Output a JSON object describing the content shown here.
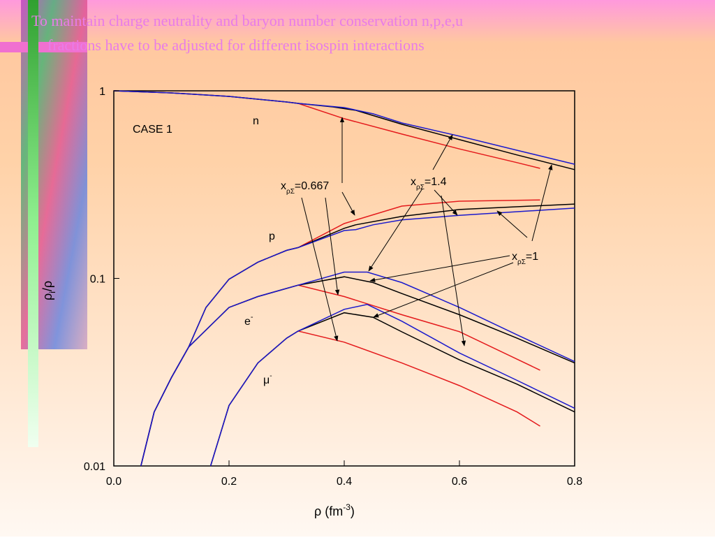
{
  "slide": {
    "title_lines": [
      "To maintain charge neutrality and baryon number conservation n,p,e,u",
      "fractions have to be adjusted  for different isospin interactions"
    ]
  },
  "chart_data": {
    "type": "line",
    "log_y": true,
    "x_label": {
      "text": "ρ (fm",
      "sup": "-3",
      "tail": ")"
    },
    "y_label": {
      "text": "ρ",
      "sub": "i",
      "tail": "/ρ"
    },
    "xlim": [
      0,
      0.8
    ],
    "ylim": [
      0.01,
      1
    ],
    "xticks": [
      {
        "value": 0,
        "label": "0.0"
      },
      {
        "value": 0.2,
        "label": "0.2"
      },
      {
        "value": 0.4,
        "label": "0.4"
      },
      {
        "value": 0.6,
        "label": "0.6"
      },
      {
        "value": 0.8,
        "label": "0.8"
      }
    ],
    "yticks": [
      0.01,
      0.1,
      1
    ],
    "case_label": "CASE 1",
    "curve_labels": {
      "n": "n",
      "p": "p",
      "e": "e",
      "e_sup": "-",
      "mu": "μ",
      "mu_sup": "-"
    },
    "x_annotations": [
      {
        "x": "x",
        "sub": "ρΣ",
        "eq": "=0.667"
      },
      {
        "x": "x",
        "sub": "ρΣ",
        "eq": "=1.4"
      },
      {
        "x": "x",
        "sub": "ρΣ",
        "eq": "=1"
      }
    ],
    "series": [
      {
        "color": "#e41a1c",
        "x": [
          0,
          0.1,
          0.2,
          0.3,
          0.32,
          0.4,
          0.5,
          0.6,
          0.7,
          0.74
        ],
        "values": [
          1,
          0.975,
          0.934,
          0.872,
          0.857,
          0.71,
          0.588,
          0.49,
          0.414,
          0.386
        ]
      },
      {
        "color": "#000000",
        "x": [
          0,
          0.1,
          0.2,
          0.3,
          0.32,
          0.38,
          0.42,
          0.5,
          0.6,
          0.7,
          0.8
        ],
        "values": [
          1,
          0.975,
          0.934,
          0.872,
          0.857,
          0.821,
          0.787,
          0.663,
          0.549,
          0.455,
          0.38
        ]
      },
      {
        "color": "#1a1acd",
        "x": [
          0,
          0.1,
          0.2,
          0.3,
          0.32,
          0.4,
          0.45,
          0.5,
          0.6,
          0.7,
          0.8
        ],
        "values": [
          1,
          0.975,
          0.934,
          0.872,
          0.857,
          0.814,
          0.754,
          0.674,
          0.573,
          0.482,
          0.406
        ]
      },
      {
        "color": "#e41a1c",
        "x": [
          0.047,
          0.07,
          0.1,
          0.13,
          0.16,
          0.2,
          0.25,
          0.3,
          0.32,
          0.4,
          0.5,
          0.6,
          0.74
        ],
        "values": [
          0.01,
          0.0194,
          0.0296,
          0.0431,
          0.07,
          0.099,
          0.122,
          0.141,
          0.146,
          0.196,
          0.243,
          0.258,
          0.262
        ]
      },
      {
        "color": "#000000",
        "x": [
          0.047,
          0.07,
          0.1,
          0.13,
          0.16,
          0.2,
          0.25,
          0.3,
          0.32,
          0.4,
          0.42,
          0.5,
          0.6,
          0.8
        ],
        "values": [
          0.01,
          0.0194,
          0.0296,
          0.0431,
          0.07,
          0.099,
          0.122,
          0.141,
          0.146,
          0.185,
          0.193,
          0.214,
          0.233,
          0.249
        ]
      },
      {
        "color": "#1a1acd",
        "x": [
          0.047,
          0.07,
          0.1,
          0.13,
          0.16,
          0.2,
          0.25,
          0.3,
          0.32,
          0.4,
          0.42,
          0.45,
          0.5,
          0.6,
          0.8
        ],
        "values": [
          0.01,
          0.0194,
          0.0296,
          0.0431,
          0.07,
          0.099,
          0.122,
          0.141,
          0.146,
          0.18,
          0.182,
          0.193,
          0.205,
          0.217,
          0.237
        ]
      },
      {
        "color": "#e41a1c",
        "x": [
          0.047,
          0.07,
          0.1,
          0.13,
          0.2,
          0.25,
          0.32,
          0.4,
          0.5,
          0.6,
          0.74
        ],
        "values": [
          0.01,
          0.0194,
          0.0296,
          0.0431,
          0.07,
          0.08,
          0.092,
          0.08,
          0.064,
          0.052,
          0.0324
        ]
      },
      {
        "color": "#000000",
        "x": [
          0.047,
          0.07,
          0.1,
          0.13,
          0.2,
          0.25,
          0.32,
          0.4,
          0.45,
          0.5,
          0.6,
          0.7,
          0.8
        ],
        "values": [
          0.01,
          0.0194,
          0.0296,
          0.0431,
          0.07,
          0.08,
          0.092,
          0.102,
          0.095,
          0.083,
          0.064,
          0.048,
          0.0354
        ]
      },
      {
        "color": "#1a1acd",
        "x": [
          0.047,
          0.07,
          0.1,
          0.13,
          0.2,
          0.25,
          0.32,
          0.4,
          0.44,
          0.5,
          0.6,
          0.7,
          0.8
        ],
        "values": [
          0.01,
          0.0194,
          0.0296,
          0.0431,
          0.07,
          0.08,
          0.092,
          0.108,
          0.108,
          0.095,
          0.07,
          0.05,
          0.036
        ]
      },
      {
        "color": "#e41a1c",
        "x": [
          0.168,
          0.2,
          0.25,
          0.3,
          0.32,
          0.4,
          0.5,
          0.6,
          0.7,
          0.74
        ],
        "values": [
          0.01,
          0.021,
          0.0354,
          0.048,
          0.0524,
          0.0457,
          0.0354,
          0.0268,
          0.0194,
          0.0163
        ]
      },
      {
        "color": "#000000",
        "x": [
          0.168,
          0.2,
          0.25,
          0.3,
          0.32,
          0.4,
          0.45,
          0.5,
          0.6,
          0.7,
          0.8
        ],
        "values": [
          0.01,
          0.021,
          0.0354,
          0.048,
          0.0524,
          0.0656,
          0.062,
          0.0519,
          0.0368,
          0.0273,
          0.0194
        ]
      },
      {
        "color": "#1a1acd",
        "x": [
          0.168,
          0.2,
          0.25,
          0.3,
          0.32,
          0.4,
          0.44,
          0.5,
          0.6,
          0.7,
          0.8
        ],
        "values": [
          0.01,
          0.021,
          0.0354,
          0.048,
          0.0524,
          0.0684,
          0.0726,
          0.0591,
          0.04,
          0.0286,
          0.0203
        ]
      }
    ]
  }
}
